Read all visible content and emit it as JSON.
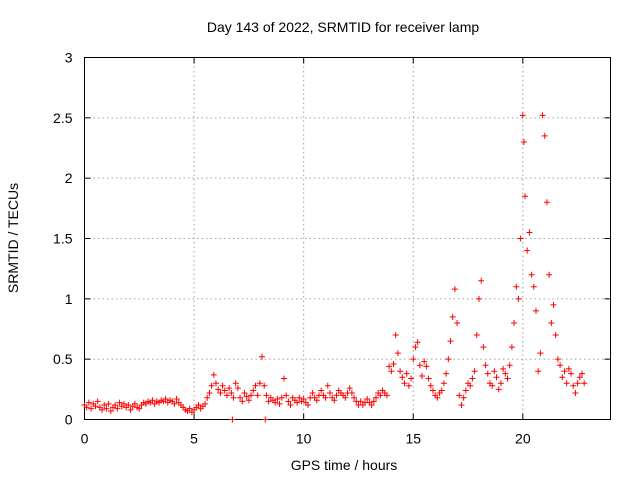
{
  "chart_data": {
    "type": "scatter",
    "title": "Day 143 of 2022, SRMTID for receiver lamp",
    "xlabel": "GPS time / hours",
    "ylabel": "SRMTID / TECUs",
    "xlim": [
      0,
      24
    ],
    "ylim": [
      0,
      3
    ],
    "xticks": [
      0,
      5,
      10,
      15,
      20
    ],
    "xtick_labels": [
      "0",
      "5",
      "10",
      "15",
      "20"
    ],
    "yticks": [
      0,
      0.5,
      1,
      1.5,
      2,
      2.5,
      3
    ],
    "ytick_labels": [
      "0",
      "0.5",
      "1",
      "1.5",
      "2",
      "2.5",
      "3"
    ],
    "grid": true,
    "marker": "+",
    "color": "#ff0000",
    "series": [
      {
        "name": "SRMTID",
        "points": [
          [
            0.0,
            0.12
          ],
          [
            0.1,
            0.1
          ],
          [
            0.2,
            0.14
          ],
          [
            0.3,
            0.09
          ],
          [
            0.4,
            0.13
          ],
          [
            0.5,
            0.11
          ],
          [
            0.6,
            0.15
          ],
          [
            0.7,
            0.1
          ],
          [
            0.8,
            0.08
          ],
          [
            0.9,
            0.12
          ],
          [
            1.0,
            0.09
          ],
          [
            1.1,
            0.13
          ],
          [
            1.2,
            0.07
          ],
          [
            1.3,
            0.1
          ],
          [
            1.4,
            0.12
          ],
          [
            1.5,
            0.09
          ],
          [
            1.6,
            0.14
          ],
          [
            1.7,
            0.11
          ],
          [
            1.8,
            0.13
          ],
          [
            1.9,
            0.1
          ],
          [
            2.0,
            0.12
          ],
          [
            2.1,
            0.08
          ],
          [
            2.2,
            0.11
          ],
          [
            2.3,
            0.13
          ],
          [
            2.4,
            0.1
          ],
          [
            2.5,
            0.09
          ],
          [
            2.6,
            0.12
          ],
          [
            2.7,
            0.14
          ],
          [
            2.8,
            0.13
          ],
          [
            2.9,
            0.15
          ],
          [
            3.0,
            0.14
          ],
          [
            3.1,
            0.16
          ],
          [
            3.2,
            0.13
          ],
          [
            3.3,
            0.15
          ],
          [
            3.4,
            0.14
          ],
          [
            3.5,
            0.16
          ],
          [
            3.6,
            0.15
          ],
          [
            3.7,
            0.17
          ],
          [
            3.8,
            0.14
          ],
          [
            3.9,
            0.16
          ],
          [
            4.0,
            0.15
          ],
          [
            4.1,
            0.13
          ],
          [
            4.2,
            0.17
          ],
          [
            4.3,
            0.14
          ],
          [
            4.4,
            0.12
          ],
          [
            4.5,
            0.1
          ],
          [
            4.6,
            0.08
          ],
          [
            4.7,
            0.07
          ],
          [
            4.8,
            0.09
          ],
          [
            4.9,
            0.06
          ],
          [
            5.0,
            0.08
          ],
          [
            5.1,
            0.1
          ],
          [
            5.2,
            0.12
          ],
          [
            5.3,
            0.09
          ],
          [
            5.4,
            0.11
          ],
          [
            5.5,
            0.13
          ],
          [
            5.6,
            0.18
          ],
          [
            5.7,
            0.22
          ],
          [
            5.8,
            0.28
          ],
          [
            5.9,
            0.37
          ],
          [
            6.0,
            0.3
          ],
          [
            6.1,
            0.25
          ],
          [
            6.2,
            0.22
          ],
          [
            6.3,
            0.28
          ],
          [
            6.4,
            0.24
          ],
          [
            6.5,
            0.2
          ],
          [
            6.6,
            0.26
          ],
          [
            6.7,
            0.22
          ],
          [
            6.8,
            0.18
          ],
          [
            6.9,
            0.3
          ],
          [
            7.0,
            0.26
          ],
          [
            7.1,
            0.18
          ],
          [
            7.2,
            0.15
          ],
          [
            7.3,
            0.22
          ],
          [
            7.4,
            0.19
          ],
          [
            7.5,
            0.16
          ],
          [
            7.6,
            0.2
          ],
          [
            7.7,
            0.24
          ],
          [
            7.8,
            0.28
          ],
          [
            7.9,
            0.2
          ],
          [
            8.0,
            0.3
          ],
          [
            8.1,
            0.52
          ],
          [
            8.2,
            0.28
          ],
          [
            8.3,
            0.2
          ],
          [
            8.4,
            0.15
          ],
          [
            8.5,
            0.18
          ],
          [
            8.6,
            0.16
          ],
          [
            8.7,
            0.14
          ],
          [
            8.8,
            0.17
          ],
          [
            8.9,
            0.13
          ],
          [
            9.0,
            0.18
          ],
          [
            9.1,
            0.34
          ],
          [
            9.2,
            0.2
          ],
          [
            9.3,
            0.15
          ],
          [
            9.4,
            0.12
          ],
          [
            9.5,
            0.18
          ],
          [
            9.6,
            0.16
          ],
          [
            9.7,
            0.14
          ],
          [
            9.8,
            0.18
          ],
          [
            9.9,
            0.15
          ],
          [
            10.0,
            0.17
          ],
          [
            10.1,
            0.14
          ],
          [
            10.2,
            0.12
          ],
          [
            10.3,
            0.18
          ],
          [
            10.4,
            0.22
          ],
          [
            10.5,
            0.18
          ],
          [
            10.6,
            0.16
          ],
          [
            10.7,
            0.2
          ],
          [
            10.8,
            0.24
          ],
          [
            10.9,
            0.2
          ],
          [
            11.0,
            0.18
          ],
          [
            11.1,
            0.28
          ],
          [
            11.2,
            0.22
          ],
          [
            11.3,
            0.18
          ],
          [
            11.4,
            0.16
          ],
          [
            11.5,
            0.2
          ],
          [
            11.6,
            0.24
          ],
          [
            11.7,
            0.22
          ],
          [
            11.8,
            0.2
          ],
          [
            11.9,
            0.18
          ],
          [
            12.0,
            0.22
          ],
          [
            12.1,
            0.26
          ],
          [
            12.2,
            0.22
          ],
          [
            12.3,
            0.18
          ],
          [
            12.4,
            0.15
          ],
          [
            12.5,
            0.12
          ],
          [
            12.6,
            0.15
          ],
          [
            12.7,
            0.12
          ],
          [
            12.8,
            0.14
          ],
          [
            12.9,
            0.17
          ],
          [
            13.0,
            0.14
          ],
          [
            13.1,
            0.12
          ],
          [
            13.2,
            0.15
          ],
          [
            13.3,
            0.18
          ],
          [
            13.4,
            0.22
          ],
          [
            13.5,
            0.2
          ],
          [
            13.6,
            0.24
          ],
          [
            13.7,
            0.22
          ],
          [
            13.8,
            0.2
          ],
          [
            13.9,
            0.44
          ],
          [
            14.0,
            0.4
          ],
          [
            14.1,
            0.46
          ],
          [
            14.2,
            0.7
          ],
          [
            14.3,
            0.55
          ],
          [
            14.4,
            0.4
          ],
          [
            14.5,
            0.35
          ],
          [
            14.6,
            0.3
          ],
          [
            14.7,
            0.38
          ],
          [
            14.8,
            0.28
          ],
          [
            14.9,
            0.34
          ],
          [
            15.0,
            0.5
          ],
          [
            15.1,
            0.6
          ],
          [
            15.2,
            0.64
          ],
          [
            15.3,
            0.45
          ],
          [
            15.4,
            0.36
          ],
          [
            15.5,
            0.48
          ],
          [
            15.6,
            0.44
          ],
          [
            15.7,
            0.34
          ],
          [
            15.8,
            0.28
          ],
          [
            15.9,
            0.24
          ],
          [
            16.0,
            0.2
          ],
          [
            16.1,
            0.18
          ],
          [
            16.2,
            0.22
          ],
          [
            16.3,
            0.24
          ],
          [
            16.4,
            0.3
          ],
          [
            16.5,
            0.38
          ],
          [
            16.6,
            0.5
          ],
          [
            16.7,
            0.65
          ],
          [
            16.8,
            0.85
          ],
          [
            16.9,
            1.08
          ],
          [
            17.0,
            0.8
          ],
          [
            17.1,
            0.2
          ],
          [
            17.2,
            0.12
          ],
          [
            17.3,
            0.18
          ],
          [
            17.4,
            0.24
          ],
          [
            17.5,
            0.3
          ],
          [
            17.6,
            0.28
          ],
          [
            17.7,
            0.34
          ],
          [
            17.8,
            0.4
          ],
          [
            17.9,
            0.7
          ],
          [
            18.0,
            1.0
          ],
          [
            18.1,
            1.15
          ],
          [
            18.2,
            0.6
          ],
          [
            18.3,
            0.45
          ],
          [
            18.4,
            0.38
          ],
          [
            18.5,
            0.3
          ],
          [
            18.6,
            0.28
          ],
          [
            18.7,
            0.4
          ],
          [
            18.8,
            0.35
          ],
          [
            18.9,
            0.25
          ],
          [
            19.0,
            0.3
          ],
          [
            19.1,
            0.42
          ],
          [
            19.2,
            0.38
          ],
          [
            19.3,
            0.34
          ],
          [
            19.4,
            0.45
          ],
          [
            19.5,
            0.6
          ],
          [
            19.6,
            0.8
          ],
          [
            19.7,
            1.1
          ],
          [
            19.8,
            1.0
          ],
          [
            19.9,
            1.5
          ],
          [
            20.0,
            2.52
          ],
          [
            20.05,
            2.3
          ],
          [
            20.1,
            1.85
          ],
          [
            20.2,
            1.4
          ],
          [
            20.3,
            1.55
          ],
          [
            20.4,
            1.2
          ],
          [
            20.5,
            1.1
          ],
          [
            20.6,
            0.9
          ],
          [
            20.7,
            0.4
          ],
          [
            20.8,
            0.55
          ],
          [
            20.9,
            2.52
          ],
          [
            21.0,
            2.35
          ],
          [
            21.1,
            1.8
          ],
          [
            21.2,
            1.2
          ],
          [
            21.3,
            0.8
          ],
          [
            21.4,
            0.95
          ],
          [
            21.5,
            0.7
          ],
          [
            21.6,
            0.5
          ],
          [
            21.7,
            0.45
          ],
          [
            21.8,
            0.35
          ],
          [
            21.9,
            0.4
          ],
          [
            22.0,
            0.3
          ],
          [
            22.1,
            0.42
          ],
          [
            22.2,
            0.38
          ],
          [
            22.3,
            0.28
          ],
          [
            22.4,
            0.22
          ],
          [
            22.5,
            0.3
          ],
          [
            22.6,
            0.35
          ],
          [
            22.7,
            0.38
          ],
          [
            22.8,
            0.3
          ],
          [
            6.75,
            0.0
          ],
          [
            8.25,
            0.0
          ]
        ]
      }
    ]
  }
}
